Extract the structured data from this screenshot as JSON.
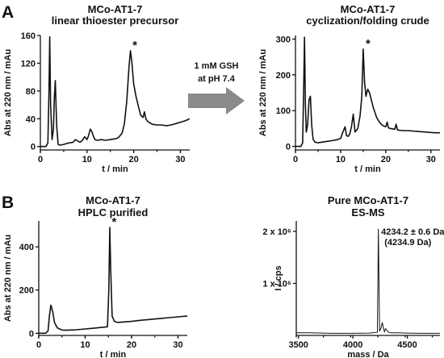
{
  "panel_labels": [
    "A",
    "B"
  ],
  "arrow": {
    "line1": "1 mM GSH",
    "line2": "at pH 7.4"
  },
  "chart_data": [
    {
      "type": "line",
      "title": "MCo-AT1-7",
      "subtitle": "linear thioester precursor",
      "xlabel": "t / min",
      "ylabel": "Abs at 220 nm / mAu",
      "xlim": [
        0,
        32
      ],
      "ylim": [
        -5,
        160
      ],
      "xticks": [
        0,
        10,
        20,
        30
      ],
      "yticks": [
        0,
        40,
        80,
        120,
        160
      ],
      "annotations": [
        {
          "text": "*",
          "x": 19.4,
          "y": 138
        }
      ],
      "series": [
        {
          "x": [
            0,
            1.2,
            1.6,
            1.85,
            2.0,
            2.2,
            2.5,
            2.8,
            3.0,
            3.2,
            3.5,
            3.8,
            4.2,
            5,
            6,
            7,
            7.5,
            8,
            8.5,
            9,
            9.5,
            10,
            10.3,
            10.7,
            11.0,
            11.3,
            11.7,
            12.2,
            13,
            14,
            15,
            16,
            16.5,
            17,
            17.5,
            18,
            18.5,
            19.0,
            19.3,
            19.6,
            20.0,
            20.5,
            21.0,
            21.5,
            22.0,
            22.3,
            22.6,
            23.0,
            23.5,
            24,
            25,
            26,
            27,
            28,
            29,
            30,
            31,
            32
          ],
          "y": [
            0,
            0,
            5,
            80,
            158,
            60,
            10,
            25,
            70,
            95,
            30,
            3,
            2,
            3,
            5,
            6,
            10,
            8,
            6,
            9,
            14,
            10,
            15,
            25,
            22,
            16,
            10,
            9,
            10,
            9,
            10,
            11,
            12,
            15,
            19,
            33,
            65,
            115,
            138,
            122,
            90,
            72,
            58,
            45,
            42,
            50,
            40,
            36,
            34,
            32,
            31,
            31,
            30,
            31,
            33,
            35,
            37,
            40
          ]
        }
      ]
    },
    {
      "type": "line",
      "title": "MCo-AT1-7",
      "subtitle": "cyclization/folding crude",
      "xlabel": "t / min",
      "ylabel": "Abs at 220 nm / mAu",
      "xlim": [
        0,
        32
      ],
      "ylim": [
        -10,
        310
      ],
      "xticks": [
        0,
        10,
        20,
        30
      ],
      "yticks": [
        0,
        100,
        200,
        300
      ],
      "annotations": [
        {
          "text": "*",
          "x": 15.2,
          "y": 272
        }
      ],
      "series": [
        {
          "x": [
            0,
            1.2,
            1.6,
            1.8,
            2.0,
            2.2,
            2.4,
            2.7,
            3.0,
            3.3,
            3.6,
            3.9,
            4.3,
            5,
            6,
            7,
            8,
            9,
            10,
            10.5,
            11.0,
            11.3,
            11.7,
            12,
            12.4,
            12.8,
            13.2,
            13.8,
            14.3,
            14.7,
            15.0,
            15.3,
            15.6,
            16.0,
            16.4,
            16.8,
            17.2,
            17.6,
            18,
            18.5,
            19,
            19.5,
            20,
            20.3,
            20.6,
            21,
            21.5,
            22.0,
            22.3,
            22.6,
            23,
            24,
            25,
            26,
            27,
            28,
            29,
            30,
            31,
            32
          ],
          "y": [
            0,
            0,
            10,
            150,
            305,
            120,
            40,
            60,
            130,
            140,
            60,
            20,
            12,
            10,
            12,
            14,
            16,
            18,
            22,
            40,
            55,
            30,
            28,
            34,
            55,
            90,
            40,
            50,
            85,
            140,
            272,
            180,
            140,
            160,
            150,
            130,
            110,
            95,
            80,
            70,
            62,
            57,
            55,
            68,
            52,
            50,
            49,
            48,
            62,
            46,
            45,
            44,
            44,
            43,
            42,
            41,
            40,
            39,
            38,
            38
          ]
        }
      ]
    },
    {
      "type": "line",
      "title": "MCo-AT1-7",
      "subtitle": "HPLC purified",
      "xlabel": "t / min",
      "ylabel": "Abs at 220 nm / mAu",
      "xlim": [
        0,
        32
      ],
      "ylim": [
        -10,
        520
      ],
      "xticks": [
        0,
        10,
        20,
        30
      ],
      "yticks": [
        0,
        200,
        400
      ],
      "annotations": [
        {
          "text": "*",
          "x": 15.4,
          "y": 490
        }
      ],
      "series": [
        {
          "x": [
            0,
            1.5,
            2.0,
            2.3,
            2.6,
            3.0,
            3.4,
            4.0,
            5,
            6,
            8,
            10,
            12,
            14,
            14.8,
            15.1,
            15.3,
            15.5,
            15.8,
            16.3,
            17,
            18,
            20,
            22,
            24,
            26,
            28,
            30,
            32
          ],
          "y": [
            0,
            0,
            10,
            80,
            130,
            100,
            50,
            25,
            15,
            14,
            16,
            20,
            24,
            28,
            30,
            200,
            490,
            300,
            80,
            55,
            50,
            52,
            55,
            60,
            64,
            68,
            72,
            76,
            80
          ]
        }
      ]
    },
    {
      "type": "line",
      "title": "Pure MCo-AT1-7",
      "subtitle": "ES-MS",
      "xlabel": "mass / Da",
      "ylabel": "I / cps",
      "xlim": [
        3480,
        4800
      ],
      "ylim": [
        0,
        2200000
      ],
      "xticks": [
        3500,
        4000,
        4500
      ],
      "yticks": [
        1000000,
        2000000
      ],
      "ytick_labels": [
        "1 x 10⁶",
        "2 x 10⁶"
      ],
      "annotations": [
        {
          "text": "4234.2 ± 0.6 Da",
          "x": 4260,
          "y": 2000000
        },
        {
          "text": "(4234.9 Da)",
          "x": 4290,
          "y": 1800000
        }
      ],
      "series": [
        {
          "x": [
            3480,
            3600,
            3800,
            4000,
            4150,
            4225,
            4234,
            4245,
            4260,
            4270,
            4280,
            4290,
            4300,
            4315,
            4330,
            4350,
            4400,
            4500,
            4600,
            4700,
            4800
          ],
          "y": [
            50000,
            50000,
            40000,
            40000,
            45000,
            60000,
            2050000,
            80000,
            150000,
            250000,
            150000,
            70000,
            130000,
            90000,
            60000,
            50000,
            50000,
            45000,
            40000,
            40000,
            40000
          ]
        }
      ]
    }
  ]
}
